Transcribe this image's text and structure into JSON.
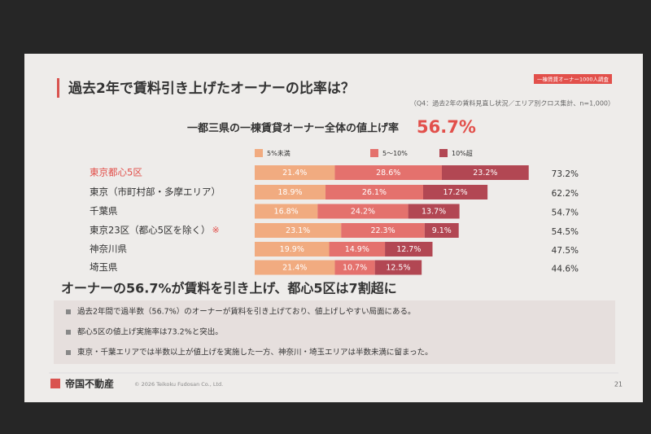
{
  "header": {
    "title": "過去2年で賃料引き上げたオーナーの比率は？",
    "tag": "一棟賃貸オーナー1000人調査",
    "subtitle": "（Q4：過去2年の賃料見直し状況／エリア別クロス集計、n=1,000）",
    "headline": "一都三県の一棟賃貸オーナー全体の値上げ率",
    "headline_value": "56.7%"
  },
  "chart_data": {
    "type": "stacked-bar-horizontal",
    "categories": [
      "東京都心5区",
      "東京（市町村部・多摩エリア）",
      "千葉県",
      "東京23区（都心5区を除く）",
      "神奈川県",
      "埼玉県"
    ],
    "note_mark": "※",
    "series": [
      {
        "name": "5%未満",
        "color": "#f1ab80",
        "values": [
          21.4,
          18.9,
          16.8,
          23.1,
          19.9,
          21.4
        ],
        "value_labels": [
          "21.4%",
          "18.9%",
          "16.8%",
          "23.1%",
          "19.9%",
          "21.4%"
        ]
      },
      {
        "name": "5～10%",
        "color": "#e4716d",
        "values": [
          28.6,
          26.1,
          24.2,
          22.3,
          14.9,
          10.7
        ],
        "value_labels": [
          "28.6%",
          "26.1%",
          "24.2%",
          "22.3%",
          "14.9%",
          "10.7%"
        ]
      },
      {
        "name": "10%超",
        "color": "#b24753",
        "values": [
          23.2,
          17.2,
          13.7,
          9.1,
          12.7,
          12.5
        ],
        "value_labels": [
          "23.2%",
          "17.2%",
          "13.7%",
          "9.1%",
          "12.7%",
          "12.5%"
        ]
      }
    ],
    "totals": [
      73.2,
      62.2,
      54.7,
      54.5,
      47.5,
      44.6
    ],
    "totals_labels": [
      "73.2%",
      "62.2%",
      "54.7%",
      "54.5%",
      "47.5%",
      "44.6%"
    ]
  },
  "summary": {
    "heading": "オーナーの56.7%が賃料を引き上げ、都心5区は7割超に",
    "bullets": [
      "過去2年間で過半数（56.7%）のオーナーが賃料を引き上げており、値上げしやすい局面にある。",
      "都心5区の値上げ実施率は73.2%と突出。",
      "東京・千葉エリアでは半数以上が値上げを実施した一方、神奈川・埼玉エリアは半数未満に留まった。"
    ]
  },
  "footer": {
    "logo": "帝国不動産",
    "copyright": "© 2026 Teikoku Fudosan Co., Ltd.",
    "page": "21"
  }
}
